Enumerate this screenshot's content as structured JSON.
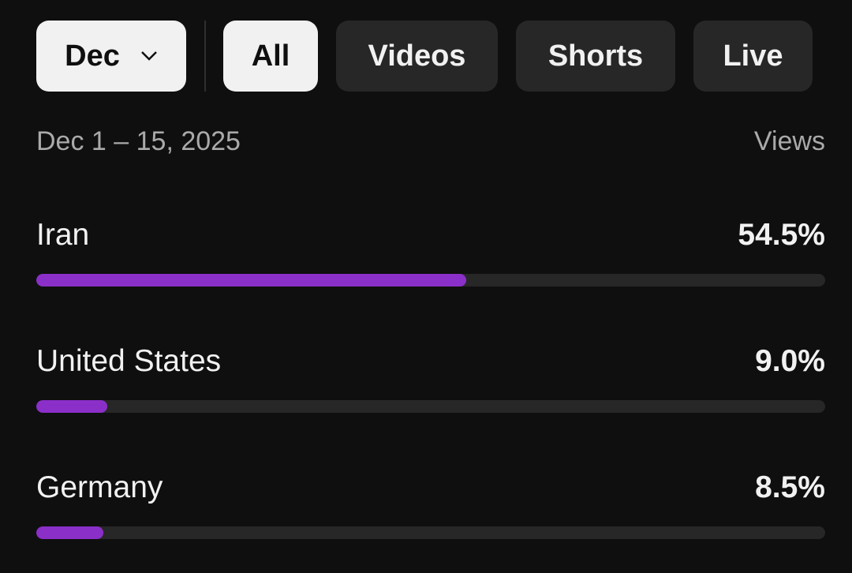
{
  "filters": {
    "month": "Dec",
    "chips": [
      "All",
      "Videos",
      "Shorts",
      "Live"
    ],
    "selected": "All"
  },
  "date_range": "Dec 1 – 15, 2025",
  "metric": "Views",
  "rows": [
    {
      "label": "Iran",
      "value": 54.5,
      "value_label": "54.5%"
    },
    {
      "label": "United States",
      "value": 9.0,
      "value_label": "9.0%"
    },
    {
      "label": "Germany",
      "value": 8.5,
      "value_label": "8.5%"
    }
  ]
}
